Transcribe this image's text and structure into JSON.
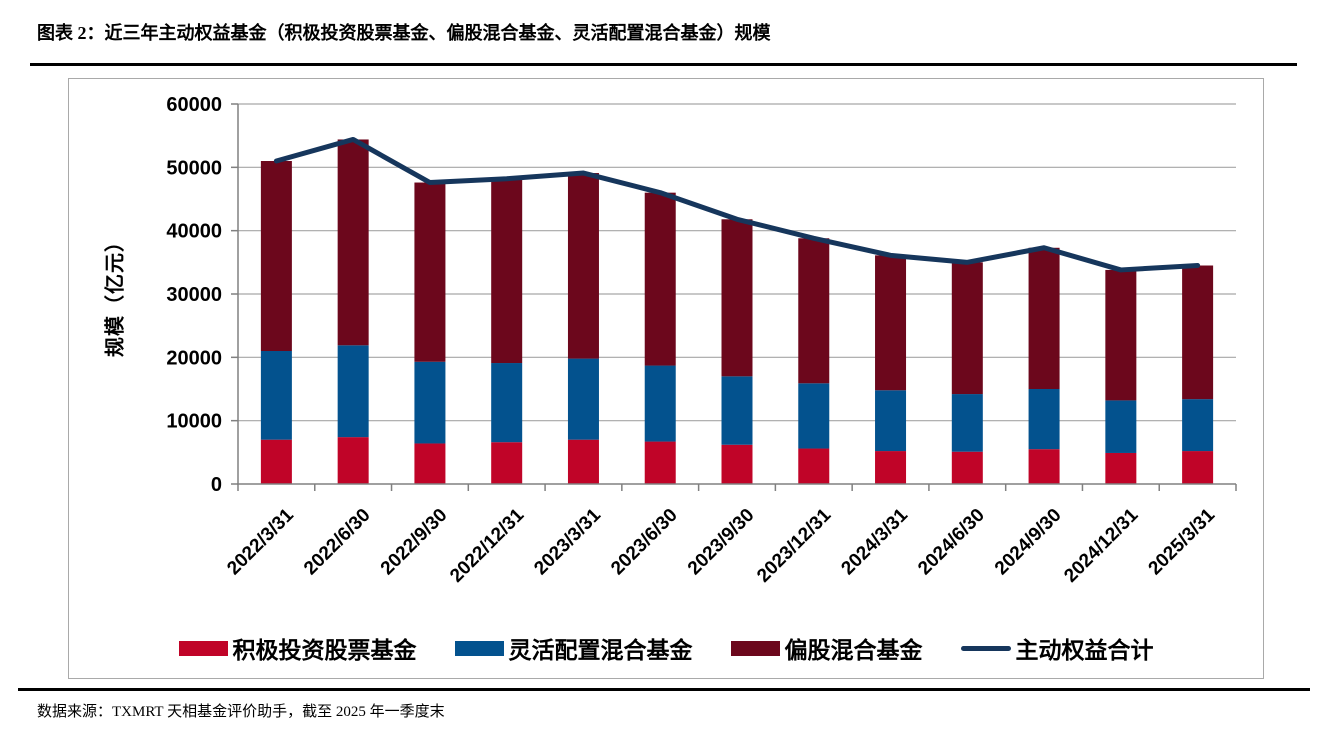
{
  "page": {
    "title": "图表 2：近三年主动权益基金（积极投资股票基金、偏股混合基金、灵活配置混合基金）规模",
    "source_note": "数据来源：TXMRT 天相基金评价助手，截至 2025 年一季度末"
  },
  "chart_data": {
    "type": "bar",
    "subtype": "stacked-bar-with-line-overlay",
    "title": "",
    "xlabel": "",
    "ylabel": "规模（亿元）",
    "ylim": [
      0,
      60000
    ],
    "ytick_step": 10000,
    "grid": true,
    "grid_color": "#a6a6a6",
    "axis_color": "#808080",
    "legend_position": "bottom",
    "categories": [
      "2022/3/31",
      "2022/6/30",
      "2022/9/30",
      "2022/12/31",
      "2023/3/31",
      "2023/6/30",
      "2023/9/30",
      "2023/12/31",
      "2024/3/31",
      "2024/6/30",
      "2024/9/30",
      "2024/12/31",
      "2025/3/31"
    ],
    "series": [
      {
        "name": "积极投资股票基金",
        "type": "bar",
        "color": "#c00428",
        "values": [
          7000,
          7400,
          6400,
          6600,
          7000,
          6700,
          6200,
          5600,
          5200,
          5100,
          5500,
          4900,
          5200
        ]
      },
      {
        "name": "灵活配置混合基金",
        "type": "bar",
        "color": "#03528e",
        "values": [
          14000,
          14500,
          12900,
          12500,
          12800,
          12000,
          10800,
          10300,
          9600,
          9100,
          9500,
          8300,
          8200
        ]
      },
      {
        "name": "偏股混合基金",
        "type": "bar",
        "color": "#6c071c",
        "values": [
          30000,
          32500,
          28300,
          29100,
          29300,
          27300,
          24800,
          22900,
          21300,
          20800,
          22300,
          20600,
          21100
        ]
      },
      {
        "name": "主动权益合计",
        "type": "line",
        "color": "#16365c",
        "values": [
          51000,
          54400,
          47600,
          48200,
          49100,
          46000,
          41800,
          38800,
          36100,
          35000,
          37300,
          33800,
          34500
        ]
      }
    ]
  }
}
